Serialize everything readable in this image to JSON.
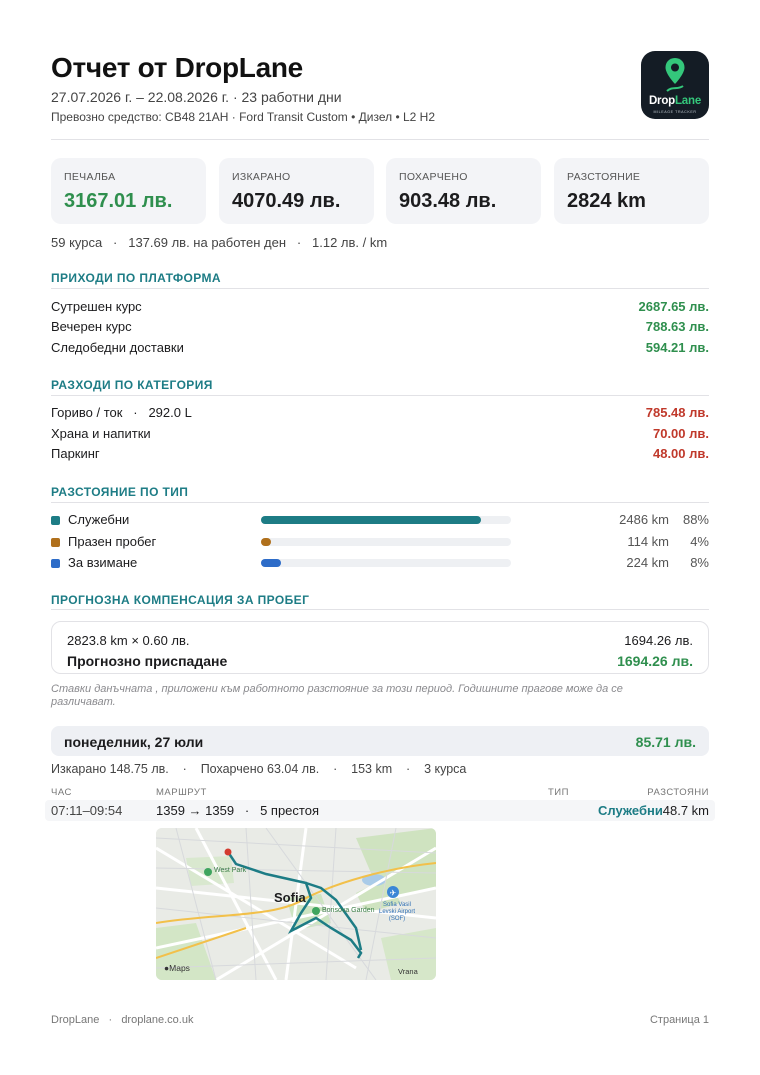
{
  "header": {
    "title": "Отчет от DropLane",
    "dates": "27.07.2026 г. – 22.08.2026 г. · 23 работни дни",
    "vehicle": "Превозно средство: CB48 21AH · Ford Transit Custom • Дизел • L2 H2",
    "logo": {
      "brand_a": "Drop",
      "brand_b": "Lane",
      "tagline": "MILEAGE TRACKER"
    }
  },
  "summary": {
    "cards": [
      {
        "label": "ПЕЧАЛБА",
        "value": "3167.01 лв."
      },
      {
        "label": "ИЗКАРАНО",
        "value": "4070.49 лв."
      },
      {
        "label": "ПОХАРЧЕНО",
        "value": "903.48 лв."
      },
      {
        "label": "РАЗСТОЯНИЕ",
        "value": "2824 km"
      }
    ],
    "stats": "59 курса   ·   137.69 лв. на работен ден   ·   1.12 лв. / km"
  },
  "income": {
    "title": "ПРИХОДИ ПО ПЛАТФОРМА",
    "rows": [
      {
        "label": "Сутрешен курс",
        "value": "2687.65 лв."
      },
      {
        "label": "Вечерен курс",
        "value": "788.63 лв."
      },
      {
        "label": "Следобедни доставки",
        "value": "594.21 лв."
      }
    ]
  },
  "expenses": {
    "title": "РАЗХОДИ ПО КАТЕГОРИЯ",
    "rows": [
      {
        "label": "Гориво / ток   ·   292.0 L",
        "value": "785.48 лв."
      },
      {
        "label": "Храна и напитки",
        "value": "70.00 лв."
      },
      {
        "label": "Паркинг",
        "value": "48.00 лв."
      }
    ]
  },
  "distance": {
    "title": "РАЗСТОЯНИЕ ПО ТИП",
    "rows": [
      {
        "label": "Служебни",
        "km": "2486 km",
        "pct": "88%",
        "share": 0.88,
        "color": "#1d7c85"
      },
      {
        "label": "Празен пробег",
        "km": "114 km",
        "pct": "4%",
        "share": 0.04,
        "color": "#b0701c"
      },
      {
        "label": "За взимане",
        "km": "224 km",
        "pct": "8%",
        "share": 0.08,
        "color": "#2d6cc8"
      }
    ]
  },
  "compensation": {
    "title": "ПРОГНОЗНА КОМПЕНСАЦИЯ ЗА ПРОБЕГ",
    "formula": "2823.8 km × 0.60 лв.",
    "formula_value": "1694.26 лв.",
    "projected_label": "Прогнозно приспадане",
    "projected_value": "1694.26 лв.",
    "note": "Ставки данъчната , приложени към работното разстояние за този период. Годишните прагове може да се различават."
  },
  "day": {
    "label": "понеделник, 27 юли",
    "value": "85.71 лв.",
    "stats": "Изкарано 148.75 лв.    ·    Похарчено 63.04 лв.    ·    153 km    ·    3 курса",
    "columns": {
      "time": "ЧАС",
      "route": "МАРШРУТ",
      "type": "ТИП",
      "distance": "РАЗСТОЯНИ"
    },
    "trip": {
      "time": "07:11–09:54",
      "route": "1359 → 1359   ·   5 престоя",
      "type": "Служебни",
      "distance": "48.7 km"
    },
    "map": {
      "city": "Sofia",
      "park1": "West Park",
      "park2": "Borisova Garden",
      "airport": "Sofia Vasil Levski Airport (SOF)",
      "vrana": "Vrana",
      "attribution": "Maps"
    }
  },
  "footer": {
    "left": "DropLane   ·   droplane.co.uk",
    "right": "Страница 1"
  }
}
